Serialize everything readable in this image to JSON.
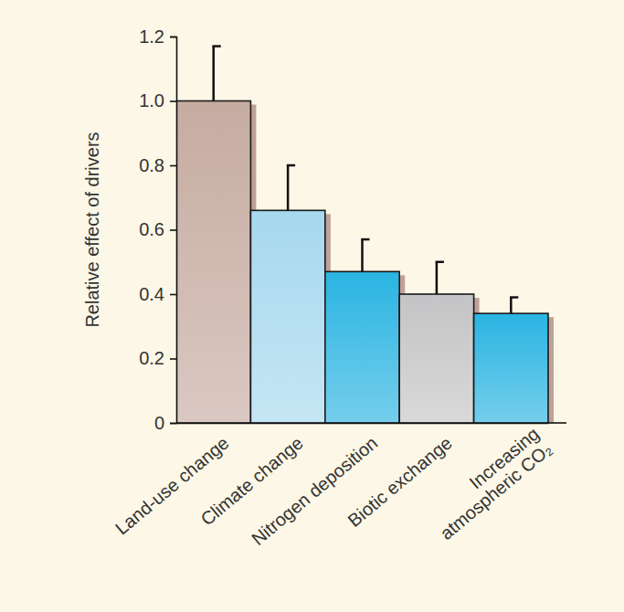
{
  "chart_data": {
    "type": "bar",
    "y_label": "Relative effect of drivers",
    "categories": [
      "Land-use change",
      "Climate change",
      "Nitrogen deposition",
      "Biotic exchange",
      "Increasing atmospheric CO₂"
    ],
    "values": [
      1.0,
      0.66,
      0.47,
      0.4,
      0.34
    ],
    "errors": [
      0.17,
      0.14,
      0.1,
      0.1,
      0.05
    ],
    "colors": [
      "#c6aba1",
      "#a6d8ee",
      "#2ab4e2",
      "#c4c4c6",
      "#2ab4e2"
    ],
    "ylim": [
      0,
      1.2
    ],
    "yticks": [
      0,
      0.2,
      0.4,
      0.6,
      0.8,
      {
        "value": 1,
        "label": "1.0"
      },
      1.2
    ]
  }
}
